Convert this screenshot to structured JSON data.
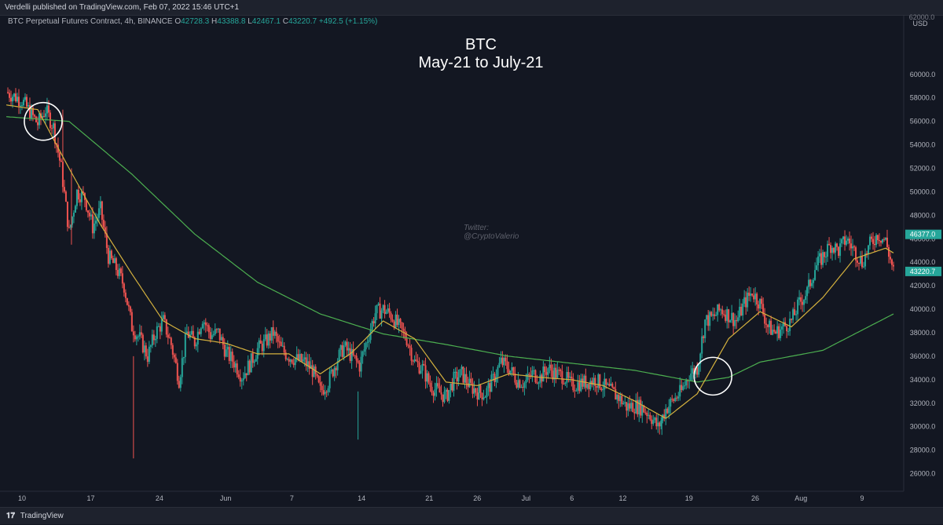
{
  "header": {
    "published": "Verdelli published on TradingView.com, Feb 07, 2022 15:46 UTC+1"
  },
  "legend": {
    "symbol": "BTC Perpetual Futures Contract, 4h, BINANCE",
    "o_label": "O",
    "o": "42728.3",
    "h_label": "H",
    "h": "43388.8",
    "l_label": "L",
    "l": "42467.1",
    "c_label": "C",
    "c": "43220.7",
    "change": "+492.5 (+1.15%)"
  },
  "watermark": {
    "line1": "Twitter:",
    "line2": "@CryptoValerio"
  },
  "footer": {
    "brand": "TradingView"
  },
  "colors": {
    "background": "#131722",
    "up": "#26a69a",
    "down": "#ef5350",
    "ema_fast": "#d4b13e",
    "ma_slow": "#4caf50",
    "circle": "#ffffff"
  },
  "chart_data": {
    "type": "candlestick",
    "title": "BTC",
    "subtitle": "May-21 to July-21",
    "ylabel": "USD",
    "ylim": [
      24500,
      65000
    ],
    "y_ticks": [
      26000,
      28000,
      30000,
      32000,
      34000,
      36000,
      38000,
      40000,
      42000,
      44000,
      46000,
      48000,
      50000,
      52000,
      54000,
      56000,
      58000,
      60000
    ],
    "y_top_label": "62000.0",
    "x_ticks": [
      "10",
      "17",
      "24",
      "Jun",
      "7",
      "14",
      "21",
      "26",
      "Jul",
      "6",
      "12",
      "19",
      "26",
      "Aug",
      "9"
    ],
    "price_labels": [
      {
        "value": 46377.0,
        "text": "46377.0",
        "color": "#26a69a"
      },
      {
        "value": 43220.7,
        "text": "43220.7",
        "color": "#26a69a"
      }
    ],
    "close_path": [
      [
        0,
        58500
      ],
      [
        2,
        57800
      ],
      [
        4,
        55800
      ],
      [
        5,
        57000
      ],
      [
        6,
        55500
      ],
      [
        7,
        52000
      ],
      [
        8,
        46500
      ],
      [
        9,
        50000
      ],
      [
        10,
        49500
      ],
      [
        11,
        47000
      ],
      [
        12,
        48500
      ],
      [
        13,
        44500
      ],
      [
        14,
        43500
      ],
      [
        15,
        42000
      ],
      [
        16,
        38500
      ],
      [
        17,
        37500
      ],
      [
        18,
        36000
      ],
      [
        19,
        38000
      ],
      [
        20,
        39000
      ],
      [
        21,
        37000
      ],
      [
        22,
        34000
      ],
      [
        23,
        38000
      ],
      [
        24,
        37200
      ],
      [
        25,
        39300
      ],
      [
        26,
        37800
      ],
      [
        27,
        38000
      ],
      [
        28,
        36300
      ],
      [
        29,
        35500
      ],
      [
        30,
        34300
      ],
      [
        31,
        35300
      ],
      [
        32,
        36600
      ],
      [
        33,
        37200
      ],
      [
        34,
        38000
      ],
      [
        35,
        36600
      ],
      [
        36,
        36000
      ],
      [
        37,
        35700
      ],
      [
        38,
        35500
      ],
      [
        39,
        34800
      ],
      [
        40,
        33000
      ],
      [
        41,
        33800
      ],
      [
        42,
        35500
      ],
      [
        43,
        36800
      ],
      [
        44,
        36000
      ],
      [
        45,
        35200
      ],
      [
        46,
        37500
      ],
      [
        47,
        39700
      ],
      [
        48,
        40000
      ],
      [
        49,
        39500
      ],
      [
        50,
        38500
      ],
      [
        51,
        37500
      ],
      [
        52,
        35500
      ],
      [
        53,
        35000
      ],
      [
        54,
        33500
      ],
      [
        55,
        33000
      ],
      [
        56,
        32500
      ],
      [
        57,
        34000
      ],
      [
        58,
        34500
      ],
      [
        59,
        33500
      ],
      [
        60,
        33000
      ],
      [
        61,
        32800
      ],
      [
        62,
        34000
      ],
      [
        63,
        35500
      ],
      [
        64,
        35000
      ],
      [
        65,
        34000
      ],
      [
        66,
        33700
      ],
      [
        67,
        34500
      ],
      [
        68,
        34200
      ],
      [
        69,
        35000
      ],
      [
        70,
        34500
      ],
      [
        71,
        34300
      ],
      [
        72,
        33500
      ],
      [
        73,
        33700
      ],
      [
        74,
        33800
      ],
      [
        75,
        34000
      ],
      [
        76,
        33500
      ],
      [
        77,
        33000
      ],
      [
        78,
        32500
      ],
      [
        79,
        31700
      ],
      [
        80,
        31800
      ],
      [
        81,
        31600
      ],
      [
        82,
        31000
      ],
      [
        83,
        29900
      ],
      [
        84,
        31500
      ],
      [
        85,
        32300
      ],
      [
        86,
        33000
      ],
      [
        87,
        34500
      ],
      [
        88,
        35000
      ],
      [
        89,
        39000
      ],
      [
        90,
        39300
      ],
      [
        91,
        40000
      ],
      [
        92,
        39500
      ],
      [
        93,
        39000
      ],
      [
        94,
        40500
      ],
      [
        95,
        41500
      ],
      [
        96,
        40500
      ],
      [
        97,
        38500
      ],
      [
        98,
        38000
      ],
      [
        99,
        38500
      ],
      [
        100,
        39000
      ],
      [
        101,
        40500
      ],
      [
        102,
        41500
      ],
      [
        103,
        43500
      ],
      [
        104,
        44500
      ],
      [
        105,
        45500
      ],
      [
        106,
        45000
      ],
      [
        107,
        46000
      ],
      [
        108,
        45000
      ],
      [
        109,
        44000
      ],
      [
        110,
        45500
      ],
      [
        111,
        46400
      ],
      [
        112,
        45800
      ],
      [
        113,
        43200
      ]
    ],
    "ema_fast": [
      [
        0,
        57400
      ],
      [
        4,
        57000
      ],
      [
        8,
        52000
      ],
      [
        12,
        47200
      ],
      [
        16,
        43000
      ],
      [
        20,
        39000
      ],
      [
        24,
        37500
      ],
      [
        28,
        37100
      ],
      [
        32,
        36200
      ],
      [
        36,
        36200
      ],
      [
        40,
        34500
      ],
      [
        44,
        36300
      ],
      [
        48,
        39000
      ],
      [
        52,
        37500
      ],
      [
        56,
        33800
      ],
      [
        60,
        33500
      ],
      [
        64,
        34500
      ],
      [
        68,
        34200
      ],
      [
        72,
        34000
      ],
      [
        76,
        33500
      ],
      [
        80,
        32200
      ],
      [
        84,
        30700
      ],
      [
        88,
        32800
      ],
      [
        92,
        37500
      ],
      [
        96,
        39800
      ],
      [
        100,
        38500
      ],
      [
        104,
        41000
      ],
      [
        108,
        44300
      ],
      [
        112,
        45200
      ],
      [
        113,
        44800
      ]
    ],
    "ma_slow": [
      [
        0,
        56400
      ],
      [
        8,
        56000
      ],
      [
        16,
        51500
      ],
      [
        24,
        46400
      ],
      [
        32,
        42300
      ],
      [
        40,
        39600
      ],
      [
        48,
        37900
      ],
      [
        56,
        37000
      ],
      [
        64,
        36000
      ],
      [
        72,
        35400
      ],
      [
        80,
        34800
      ],
      [
        88,
        33800
      ],
      [
        92,
        34200
      ],
      [
        96,
        35500
      ],
      [
        104,
        36500
      ],
      [
        113,
        39600
      ]
    ],
    "annotations": [
      {
        "type": "circle",
        "x": 4.7,
        "y": 56000
      },
      {
        "type": "circle",
        "x": 90,
        "y": 34300
      }
    ]
  }
}
